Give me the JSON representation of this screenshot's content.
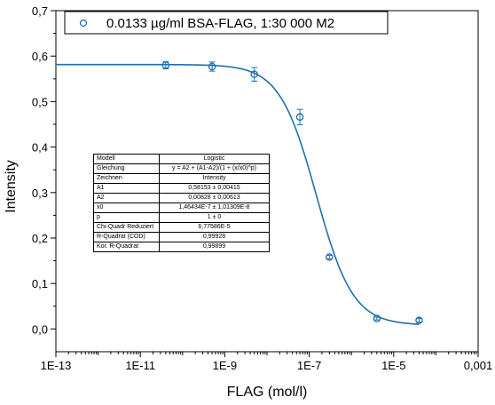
{
  "chart_data": {
    "type": "scatter",
    "title": "",
    "xlabel": "FLAG (mol/l)",
    "ylabel": "Intensity",
    "x_scale": "log",
    "xlim": [
      1e-13,
      0.001
    ],
    "ylim": [
      -0.05,
      0.7
    ],
    "x_ticks": [
      "1E-13",
      "1E-11",
      "1E-9",
      "1E-7",
      "1E-5",
      "0,001"
    ],
    "y_ticks": [
      "0,0",
      "0,1",
      "0,2",
      "0,3",
      "0,4",
      "0,5",
      "0,6",
      "0,7"
    ],
    "legend": {
      "position": "top",
      "label": "0.0133 µg/ml BSA-FLAG, 1:30 000 M2"
    },
    "color": "#1f6fb0",
    "series": [
      {
        "name": "0.0133 µg/ml BSA-FLAG, 1:30 000 M2",
        "points": [
          {
            "x": 4e-11,
            "y": 0.58,
            "err": 0.008
          },
          {
            "x": 5e-10,
            "y": 0.577,
            "err": 0.01
          },
          {
            "x": 5e-09,
            "y": 0.56,
            "err": 0.015
          },
          {
            "x": 6e-08,
            "y": 0.466,
            "err": 0.017
          },
          {
            "x": 3e-07,
            "y": 0.158,
            "err": 0.004
          },
          {
            "x": 4e-06,
            "y": 0.023,
            "err": 0.003
          },
          {
            "x": 4e-05,
            "y": 0.019,
            "err": 0.004
          }
        ]
      }
    ],
    "fit": {
      "model": "Logistic",
      "A1": 0.58153,
      "A2": 0.00828,
      "x0": 1.46434e-07,
      "p": 1
    },
    "fit_table": [
      [
        "Modell",
        "Logistic"
      ],
      [
        "Gleichung",
        "y = A2 + (A1-A2)/(1 + (x/x0)^p)"
      ],
      [
        "Zeichnen",
        "Intensity"
      ],
      [
        "A1",
        "0,58153 ± 0,00415"
      ],
      [
        "A2",
        "0,00828 ± 0,00613"
      ],
      [
        "x0",
        "1,46434E-7 ± 1,01309E-8"
      ],
      [
        "p",
        "1 ± 0"
      ],
      [
        "Chi-Quadr Reduziert",
        "6,77586E-5"
      ],
      [
        "R-Quadrat (COD)",
        "0,99928"
      ],
      [
        "Kor. R-Quadrat",
        "0,99899"
      ]
    ]
  }
}
